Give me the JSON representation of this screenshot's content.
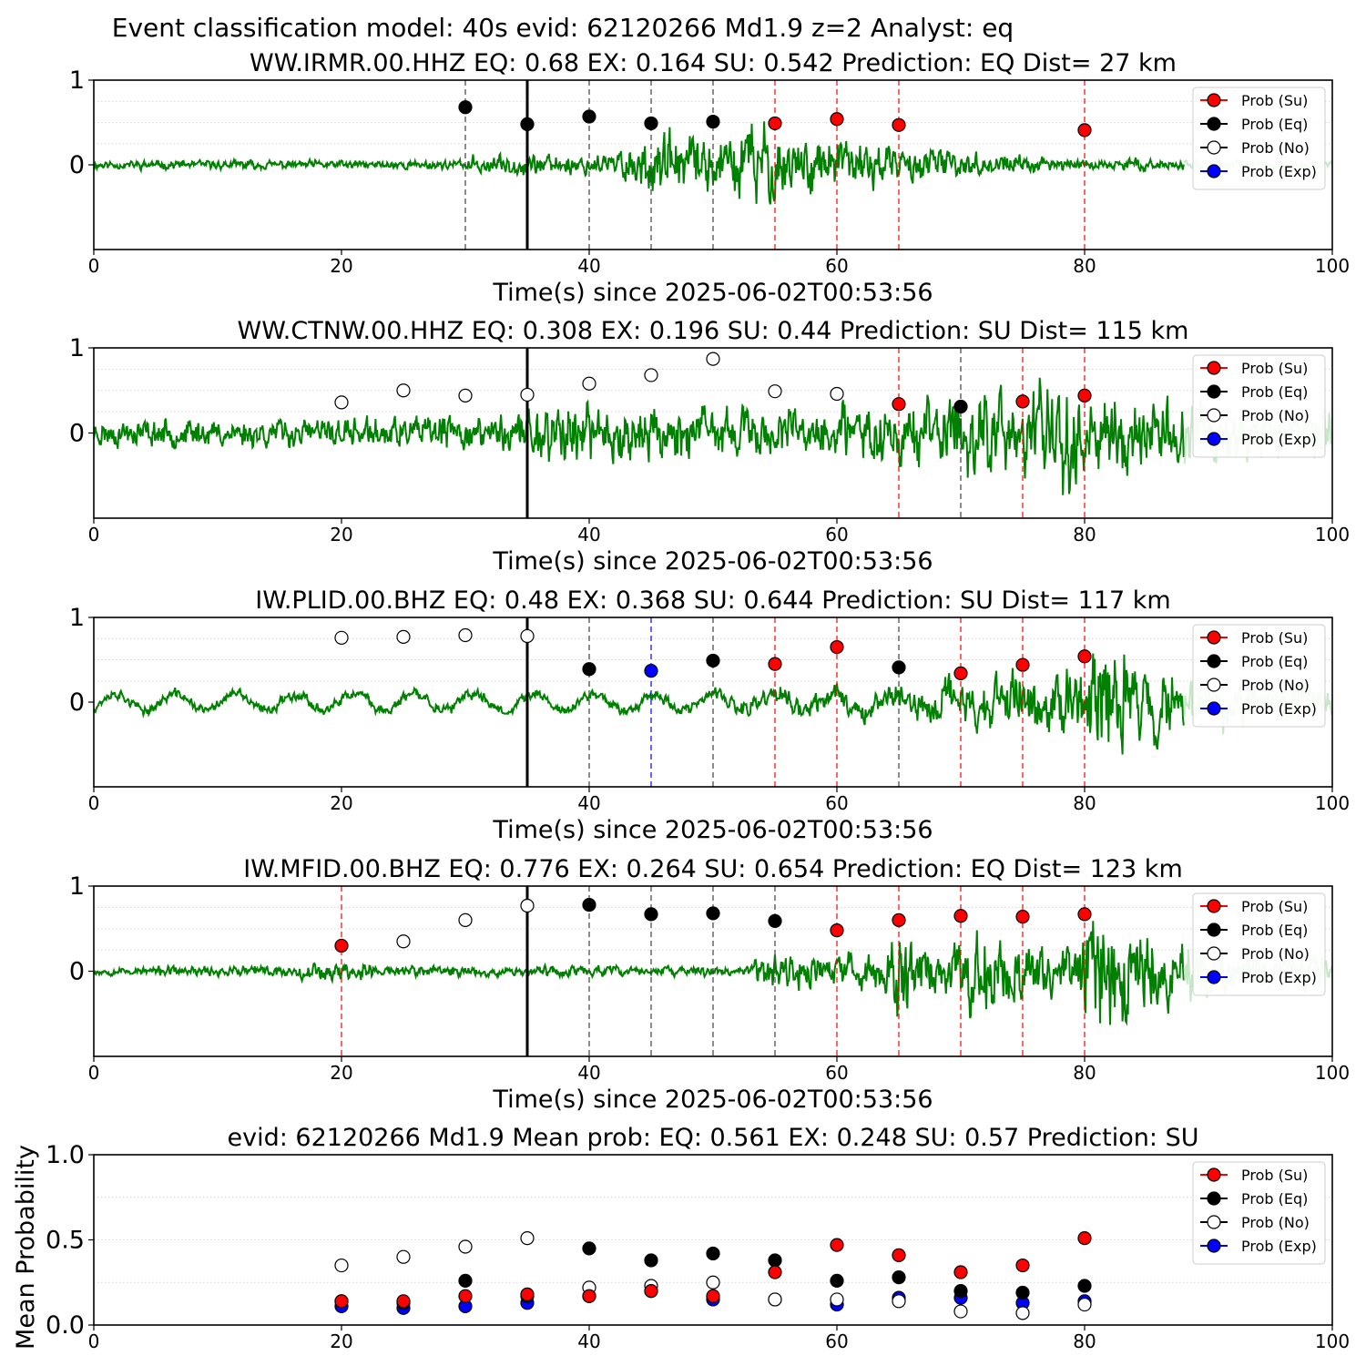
{
  "figure_title": "Event classification model: 40s evid: 62120266 Md1.9 z=2 Analyst: eq",
  "legend_entries": [
    {
      "label": "Prob (Su)",
      "color": "#ff0000",
      "fill": "#ff0000"
    },
    {
      "label": "Prob (Eq)",
      "color": "#000000",
      "fill": "#000000"
    },
    {
      "label": "Prob (No)",
      "color": "#000000",
      "fill": "#ffffff"
    },
    {
      "label": "Prob (Exp)",
      "color": "#0000ff",
      "fill": "#0000ff"
    }
  ],
  "colors": {
    "waveform": "#008000",
    "waveform_faded": "#c8e6c8",
    "su": "#ff0000",
    "eq": "#000000",
    "exp": "#0000ff",
    "pick": "#000000"
  },
  "chart_data": [
    {
      "type": "line",
      "title": "WW.IRMR.00.HHZ   EQ: 0.68  EX: 0.164  SU: 0.542   Prediction: EQ    Dist= 27 km",
      "xlabel": "Time(s) since 2025-06-02T00:53:56",
      "ylabel": "",
      "xlim": [
        0,
        100
      ],
      "ylim": [
        -1,
        1
      ],
      "xticks": [
        "0",
        "20",
        "40",
        "60",
        "80",
        "100"
      ],
      "yticks": [
        "0",
        "1"
      ],
      "grid": "horizontal dotted",
      "legend_position": "top-right",
      "pick_time": 35,
      "waveform": {
        "seed": 11,
        "base": 0.06,
        "envelope": [
          [
            0,
            0.06
          ],
          [
            30,
            0.06
          ],
          [
            30.5,
            0.12
          ],
          [
            42,
            0.16
          ],
          [
            45,
            0.42
          ],
          [
            50,
            0.34
          ],
          [
            53,
            0.6
          ],
          [
            55,
            0.5
          ],
          [
            58,
            0.38
          ],
          [
            65,
            0.24
          ],
          [
            72,
            0.14
          ],
          [
            80,
            0.08
          ],
          [
            100,
            0.05
          ]
        ],
        "faded_from": 88
      },
      "points": [
        {
          "t": 30,
          "p": 0.68,
          "cls": "eq"
        },
        {
          "t": 35,
          "p": 0.48,
          "cls": "eq"
        },
        {
          "t": 40,
          "p": 0.57,
          "cls": "eq"
        },
        {
          "t": 45,
          "p": 0.49,
          "cls": "eq"
        },
        {
          "t": 50,
          "p": 0.51,
          "cls": "eq"
        },
        {
          "t": 55,
          "p": 0.49,
          "cls": "su"
        },
        {
          "t": 60,
          "p": 0.54,
          "cls": "su"
        },
        {
          "t": 65,
          "p": 0.47,
          "cls": "su"
        },
        {
          "t": 80,
          "p": 0.41,
          "cls": "su"
        }
      ]
    },
    {
      "type": "line",
      "title": "WW.CTNW.00.HHZ   EQ: 0.308  EX: 0.196  SU: 0.44   Prediction: SU    Dist= 115 km",
      "xlabel": "Time(s) since 2025-06-02T00:53:56",
      "ylabel": "",
      "xlim": [
        0,
        100
      ],
      "ylim": [
        -1,
        1
      ],
      "xticks": [
        "0",
        "20",
        "40",
        "60",
        "80",
        "100"
      ],
      "yticks": [
        "0",
        "1"
      ],
      "grid": "horizontal dotted",
      "legend_position": "top-right",
      "pick_time": 35,
      "waveform": {
        "seed": 23,
        "base": 0.14,
        "envelope": [
          [
            0,
            0.18
          ],
          [
            25,
            0.2
          ],
          [
            34,
            0.26
          ],
          [
            35,
            0.42
          ],
          [
            45,
            0.36
          ],
          [
            55,
            0.3
          ],
          [
            65,
            0.42
          ],
          [
            70,
            0.6
          ],
          [
            75,
            0.55
          ],
          [
            78,
            0.8
          ],
          [
            82,
            0.55
          ],
          [
            90,
            0.4
          ],
          [
            100,
            0.3
          ]
        ],
        "faded_from": 88
      },
      "points": [
        {
          "t": 20,
          "p": 0.36,
          "cls": "no"
        },
        {
          "t": 25,
          "p": 0.5,
          "cls": "no"
        },
        {
          "t": 30,
          "p": 0.44,
          "cls": "no"
        },
        {
          "t": 35,
          "p": 0.45,
          "cls": "no"
        },
        {
          "t": 40,
          "p": 0.58,
          "cls": "no"
        },
        {
          "t": 45,
          "p": 0.68,
          "cls": "no"
        },
        {
          "t": 50,
          "p": 0.87,
          "cls": "no"
        },
        {
          "t": 55,
          "p": 0.49,
          "cls": "no"
        },
        {
          "t": 60,
          "p": 0.46,
          "cls": "no"
        },
        {
          "t": 65,
          "p": 0.34,
          "cls": "su"
        },
        {
          "t": 70,
          "p": 0.31,
          "cls": "eq"
        },
        {
          "t": 75,
          "p": 0.37,
          "cls": "su"
        },
        {
          "t": 80,
          "p": 0.44,
          "cls": "su"
        }
      ]
    },
    {
      "type": "line",
      "title": "IW.PLID.00.BHZ   EQ: 0.48  EX: 0.368  SU: 0.644   Prediction: SU    Dist= 117 km",
      "xlabel": "Time(s) since 2025-06-02T00:53:56",
      "ylabel": "",
      "xlim": [
        0,
        100
      ],
      "ylim": [
        -1,
        1
      ],
      "xticks": [
        "0",
        "20",
        "40",
        "60",
        "80",
        "100"
      ],
      "yticks": [
        "0",
        "1"
      ],
      "grid": "horizontal dotted",
      "legend_position": "top-right",
      "pick_time": 35,
      "waveform": {
        "seed": 37,
        "base": 0.06,
        "swell": 0.12,
        "envelope": [
          [
            0,
            0.07
          ],
          [
            50,
            0.08
          ],
          [
            55,
            0.16
          ],
          [
            60,
            0.14
          ],
          [
            65,
            0.2
          ],
          [
            70,
            0.3
          ],
          [
            75,
            0.36
          ],
          [
            80,
            0.5
          ],
          [
            81,
            0.95
          ],
          [
            84,
            0.6
          ],
          [
            90,
            0.3
          ],
          [
            100,
            0.22
          ]
        ],
        "faded_from": 88
      },
      "points": [
        {
          "t": 20,
          "p": 0.76,
          "cls": "no"
        },
        {
          "t": 25,
          "p": 0.77,
          "cls": "no"
        },
        {
          "t": 30,
          "p": 0.79,
          "cls": "no"
        },
        {
          "t": 35,
          "p": 0.78,
          "cls": "no"
        },
        {
          "t": 40,
          "p": 0.39,
          "cls": "eq"
        },
        {
          "t": 45,
          "p": 0.37,
          "cls": "exp"
        },
        {
          "t": 50,
          "p": 0.49,
          "cls": "eq"
        },
        {
          "t": 55,
          "p": 0.45,
          "cls": "su"
        },
        {
          "t": 60,
          "p": 0.65,
          "cls": "su"
        },
        {
          "t": 65,
          "p": 0.41,
          "cls": "eq"
        },
        {
          "t": 70,
          "p": 0.34,
          "cls": "su"
        },
        {
          "t": 75,
          "p": 0.44,
          "cls": "su"
        },
        {
          "t": 80,
          "p": 0.54,
          "cls": "su"
        }
      ]
    },
    {
      "type": "line",
      "title": "IW.MFID.00.BHZ   EQ: 0.776  EX: 0.264  SU: 0.654   Prediction: EQ    Dist= 123 km",
      "xlabel": "Time(s) since 2025-06-02T00:53:56",
      "ylabel": "",
      "xlim": [
        0,
        100
      ],
      "ylim": [
        -1,
        1
      ],
      "xticks": [
        "0",
        "20",
        "40",
        "60",
        "80",
        "100"
      ],
      "yticks": [
        "0",
        "1"
      ],
      "grid": "horizontal dotted",
      "legend_position": "top-right",
      "pick_time": 35,
      "waveform": {
        "seed": 53,
        "base": 0.05,
        "envelope": [
          [
            0,
            0.05
          ],
          [
            15,
            0.08
          ],
          [
            20,
            0.14
          ],
          [
            25,
            0.08
          ],
          [
            53,
            0.06
          ],
          [
            54,
            0.3
          ],
          [
            60,
            0.22
          ],
          [
            64,
            0.25
          ],
          [
            65,
            0.7
          ],
          [
            67,
            0.3
          ],
          [
            69,
            0.3
          ],
          [
            70,
            0.65
          ],
          [
            74,
            0.4
          ],
          [
            79,
            0.3
          ],
          [
            80,
            0.6
          ],
          [
            81,
            0.95
          ],
          [
            85,
            0.55
          ],
          [
            92,
            0.3
          ],
          [
            100,
            0.2
          ]
        ],
        "faded_from": 88
      },
      "points": [
        {
          "t": 20,
          "p": 0.3,
          "cls": "su"
        },
        {
          "t": 25,
          "p": 0.35,
          "cls": "no"
        },
        {
          "t": 30,
          "p": 0.6,
          "cls": "no"
        },
        {
          "t": 35,
          "p": 0.77,
          "cls": "no"
        },
        {
          "t": 40,
          "p": 0.78,
          "cls": "eq"
        },
        {
          "t": 45,
          "p": 0.67,
          "cls": "eq"
        },
        {
          "t": 50,
          "p": 0.68,
          "cls": "eq"
        },
        {
          "t": 55,
          "p": 0.59,
          "cls": "eq"
        },
        {
          "t": 60,
          "p": 0.48,
          "cls": "su"
        },
        {
          "t": 65,
          "p": 0.6,
          "cls": "su"
        },
        {
          "t": 70,
          "p": 0.65,
          "cls": "su"
        },
        {
          "t": 75,
          "p": 0.64,
          "cls": "su"
        },
        {
          "t": 80,
          "p": 0.67,
          "cls": "su"
        }
      ]
    },
    {
      "type": "scatter",
      "title": "evid: 62120266  Md1.9   Mean prob:   EQ: 0.561  EX: 0.248  SU: 0.57   Prediction: SU",
      "xlabel": "",
      "ylabel": "Mean Probability",
      "xlim": [
        0,
        100
      ],
      "ylim": [
        0,
        1
      ],
      "xticks": [
        "0",
        "20",
        "40",
        "60",
        "80",
        "100"
      ],
      "yticks": [
        "0.0",
        "0.5",
        "1.0"
      ],
      "grid": "horizontal dotted",
      "legend_position": "top-right",
      "x": [
        20,
        25,
        30,
        35,
        40,
        45,
        50,
        55,
        60,
        65,
        70,
        75,
        80
      ],
      "series": [
        {
          "name": "Prob (Exp)",
          "cls": "exp",
          "values": [
            0.11,
            0.1,
            0.11,
            0.13,
            0.17,
            0.2,
            0.15,
            0.15,
            0.12,
            0.16,
            0.16,
            0.13,
            0.14
          ]
        },
        {
          "name": "Prob (No)",
          "cls": "no",
          "values": [
            0.35,
            0.4,
            0.46,
            0.51,
            0.22,
            0.23,
            0.25,
            0.15,
            0.15,
            0.14,
            0.08,
            0.07,
            0.12
          ]
        },
        {
          "name": "Prob (Eq)",
          "cls": "eq",
          "values": [
            0.14,
            0.13,
            0.26,
            0.17,
            0.45,
            0.38,
            0.42,
            0.38,
            0.26,
            0.28,
            0.2,
            0.19,
            0.23
          ]
        },
        {
          "name": "Prob (Su)",
          "cls": "su",
          "values": [
            0.14,
            0.14,
            0.17,
            0.18,
            0.17,
            0.2,
            0.17,
            0.31,
            0.47,
            0.41,
            0.31,
            0.35,
            0.51
          ]
        }
      ]
    }
  ]
}
